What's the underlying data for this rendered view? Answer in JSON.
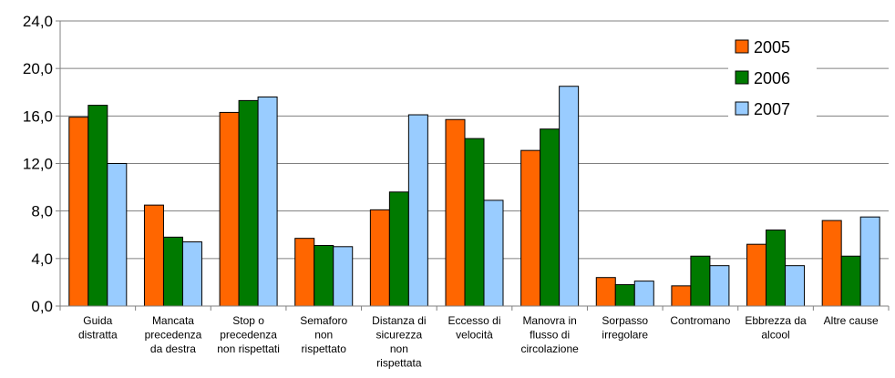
{
  "chart_data": {
    "type": "bar",
    "categories": [
      [
        "Guida",
        "distratta"
      ],
      [
        "Mancata",
        "precedenza",
        "da destra"
      ],
      [
        "Stop  o",
        "precedenza",
        "non rispettati"
      ],
      [
        "Semaforo",
        "non",
        "rispettato"
      ],
      [
        "Distanza di",
        "sicurezza",
        "non",
        "rispettata"
      ],
      [
        "Eccesso di",
        "velocità"
      ],
      [
        "Manovra in",
        "flusso di",
        "circolazione"
      ],
      [
        "Sorpasso",
        "irregolare"
      ],
      [
        "Contromano"
      ],
      [
        "Ebbrezza da",
        "alcool"
      ],
      [
        "Altre cause"
      ]
    ],
    "series": [
      {
        "name": "2005",
        "color": "#ff6600",
        "values": [
          15.9,
          8.5,
          16.3,
          5.7,
          8.1,
          15.7,
          13.1,
          2.4,
          1.7,
          5.2,
          7.2
        ]
      },
      {
        "name": "2006",
        "color": "#007a00",
        "values": [
          16.9,
          5.8,
          17.3,
          5.1,
          9.6,
          14.1,
          14.9,
          1.8,
          4.2,
          6.4,
          4.2
        ]
      },
      {
        "name": "2007",
        "color": "#99ccff",
        "values": [
          12.0,
          5.4,
          17.6,
          5.0,
          16.1,
          8.9,
          18.5,
          2.1,
          3.4,
          3.4,
          7.5
        ]
      }
    ],
    "ylim": [
      0,
      24
    ],
    "yticks": [
      "0,0",
      "4,0",
      "8,0",
      "12,0",
      "16,0",
      "20,0",
      "24,0"
    ],
    "grid": true,
    "legend": "top-right"
  }
}
